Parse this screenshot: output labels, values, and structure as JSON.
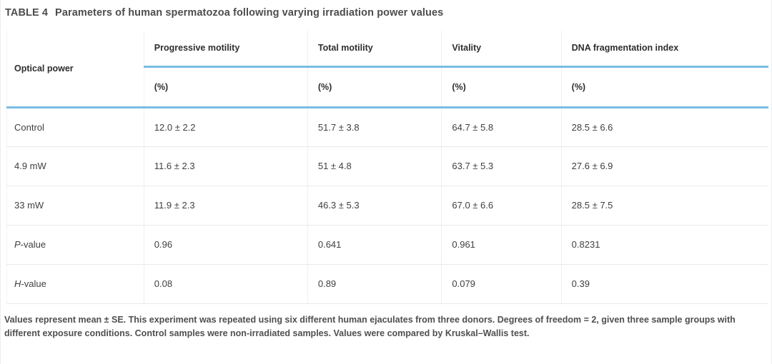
{
  "caption": {
    "label": "TABLE 4",
    "title": "Parameters of human spermatozoa following varying irradiation power values"
  },
  "table": {
    "row_header": "Optical power",
    "columns": [
      {
        "label": "Progressive motility",
        "unit": "(%)"
      },
      {
        "label": "Total motility",
        "unit": "(%)"
      },
      {
        "label": "Vitality",
        "unit": "(%)"
      },
      {
        "label": "DNA fragmentation index",
        "unit": "(%)"
      }
    ],
    "rows": [
      {
        "label": "Control",
        "values": [
          "12.0 ± 2.2",
          "51.7 ± 3.8",
          "64.7 ± 5.8",
          "28.5 ± 6.6"
        ]
      },
      {
        "label": "4.9 mW",
        "values": [
          "11.6 ± 2.3",
          "51 ± 4.8",
          "63.7 ± 5.3",
          "27.6 ± 6.9"
        ]
      },
      {
        "label": "33 mW",
        "values": [
          "11.9 ± 2.3",
          "46.3 ± 5.3",
          "67.0 ± 6.6",
          "28.5 ± 7.5"
        ]
      },
      {
        "label_italic": "P",
        "label_rest": "-value",
        "values": [
          "0.96",
          "0.641",
          "0.961",
          "0.8231"
        ]
      },
      {
        "label_italic": "H",
        "label_rest": "-value",
        "values": [
          "0.08",
          "0.89",
          "0.079",
          "0.39"
        ]
      }
    ]
  },
  "footnote": "Values represent mean ± SE. This experiment was repeated using six different human ejaculates from three donors. Degrees of freedom = 2, given three sample groups with different exposure conditions. Control samples were non-irradiated samples. Values were compared by Kruskal–Wallis test.",
  "colors": {
    "accent_blue": "#79bce4",
    "divider_gray": "#f0f0f0",
    "row_separator_gray": "#e9e9e9",
    "text_dark": "#2e2e2e",
    "text_body": "#3f3f3f",
    "text_caption": "#4d4d4d"
  }
}
